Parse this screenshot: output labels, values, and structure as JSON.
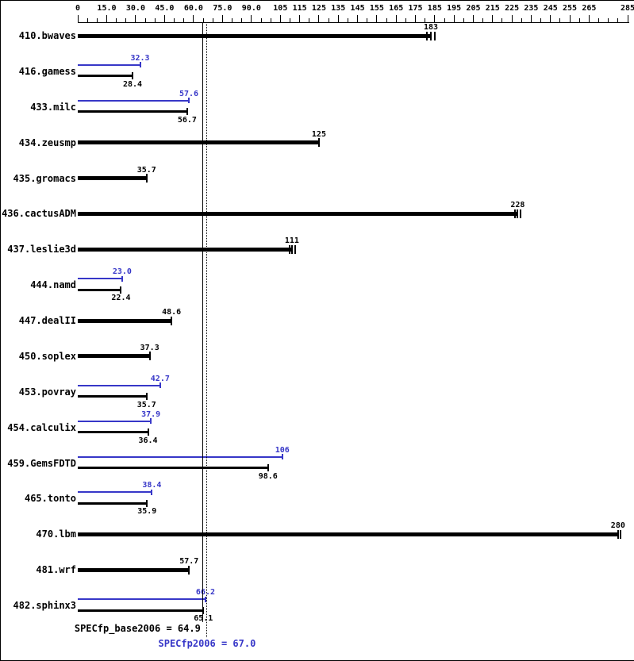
{
  "chart_data": {
    "type": "bar",
    "orientation": "horizontal",
    "title": "",
    "xlim": [
      0,
      285
    ],
    "grid": false,
    "axis": {
      "position": "top",
      "tick_values": [
        0,
        15,
        30,
        45,
        60,
        75,
        90,
        105,
        115,
        125,
        135,
        145,
        155,
        165,
        175,
        185,
        195,
        205,
        215,
        225,
        235,
        245,
        255,
        265,
        285
      ],
      "tick_labels": [
        "0",
        "15.0",
        "30.0",
        "45.0",
        "60.0",
        "75.0",
        "90.0",
        "105",
        "115",
        "125",
        "135",
        "145",
        "155",
        "165",
        "175",
        "185",
        "195",
        "205",
        "215",
        "225",
        "235",
        "245",
        "255",
        "265",
        "285"
      ],
      "minor_tick_step": 5
    },
    "colors": {
      "base": "#000000",
      "peak": "#3737c8",
      "background": "#ffffff"
    },
    "categories": [
      "410.bwaves",
      "416.gamess",
      "433.milc",
      "434.zeusmp",
      "435.gromacs",
      "436.cactusADM",
      "437.leslie3d",
      "444.namd",
      "447.dealII",
      "450.soplex",
      "453.povray",
      "454.calculix",
      "459.GemsFDTD",
      "465.tonto",
      "470.lbm",
      "481.wrf",
      "482.sphinx3"
    ],
    "series": [
      {
        "name": "peak",
        "color": "#3737c8",
        "values": [
          null,
          32.3,
          57.6,
          null,
          null,
          null,
          null,
          23.0,
          null,
          null,
          42.7,
          37.9,
          106,
          38.4,
          null,
          null,
          66.2
        ],
        "labels": [
          null,
          "32.3",
          "57.6",
          null,
          null,
          null,
          null,
          "23.0",
          null,
          null,
          "42.7",
          "37.9",
          "106",
          "38.4",
          null,
          null,
          "66.2"
        ],
        "run_ticks": [
          null,
          null,
          null,
          null,
          null,
          null,
          null,
          null,
          null,
          null,
          null,
          null,
          null,
          null,
          null,
          null,
          null
        ]
      },
      {
        "name": "base",
        "color": "#000000",
        "values": [
          183,
          28.4,
          56.7,
          125,
          35.7,
          228,
          111,
          22.4,
          48.6,
          37.3,
          35.7,
          36.4,
          98.6,
          35.9,
          280,
          57.7,
          65.1
        ],
        "labels": [
          "183",
          "28.4",
          "56.7",
          "125",
          "35.7",
          "228",
          "111",
          "22.4",
          "48.6",
          "37.3",
          "35.7",
          "36.4",
          "98.6",
          "35.9",
          "280",
          "57.7",
          "65.1"
        ],
        "run_ticks": [
          [
            181,
            183,
            185
          ],
          null,
          null,
          null,
          null,
          [
            226.5,
            228,
            229.5
          ],
          [
            110,
            111,
            112.5
          ],
          null,
          null,
          null,
          null,
          null,
          null,
          null,
          [
            280,
            281.5
          ],
          null,
          null
        ]
      }
    ],
    "reference_lines": [
      {
        "name": "base-mean",
        "label": "SPECfp_base2006 = 64.9",
        "value": 64.9,
        "line_style": "solid",
        "line_color": "#000000",
        "label_color": "#000000"
      },
      {
        "name": "peak-mean",
        "label": "SPECfp2006 = 67.0",
        "value": 67.0,
        "line_style": "dotted",
        "line_color": "#000000",
        "label_color": "#3737c8"
      }
    ],
    "legend": "none"
  }
}
